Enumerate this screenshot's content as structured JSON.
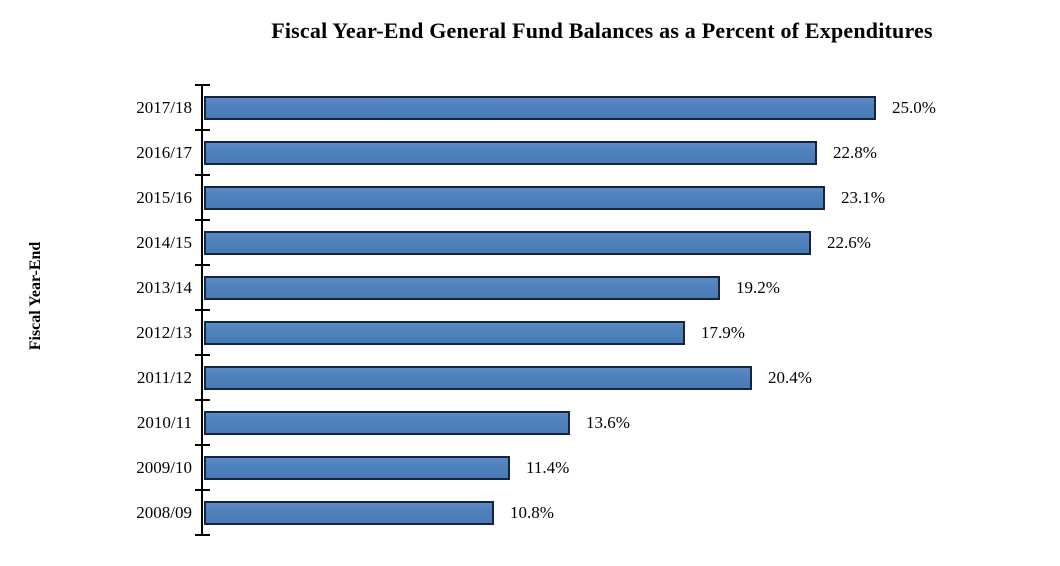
{
  "chart_data": {
    "type": "bar",
    "orientation": "horizontal",
    "title": "Fiscal Year-End General Fund Balances as a Percent of Expenditures",
    "xlabel": "",
    "ylabel": "Fiscal Year-End",
    "categories": [
      "2017/18",
      "2016/17",
      "2015/16",
      "2014/15",
      "2013/14",
      "2012/13",
      "2011/12",
      "2010/11",
      "2009/10",
      "2008/09"
    ],
    "values": [
      25.0,
      22.8,
      23.1,
      22.6,
      19.2,
      17.9,
      20.4,
      13.6,
      11.4,
      10.8
    ],
    "value_labels": [
      "25.0%",
      "22.8%",
      "23.1%",
      "22.6%",
      "19.2%",
      "17.9%",
      "20.4%",
      "13.6%",
      "11.4%",
      "10.8%"
    ],
    "xlim": [
      0,
      25
    ],
    "grid": false,
    "legend": null,
    "bar_color": "#4f81bd",
    "bar_border_color": "#152540",
    "axis_color": "#000000"
  }
}
